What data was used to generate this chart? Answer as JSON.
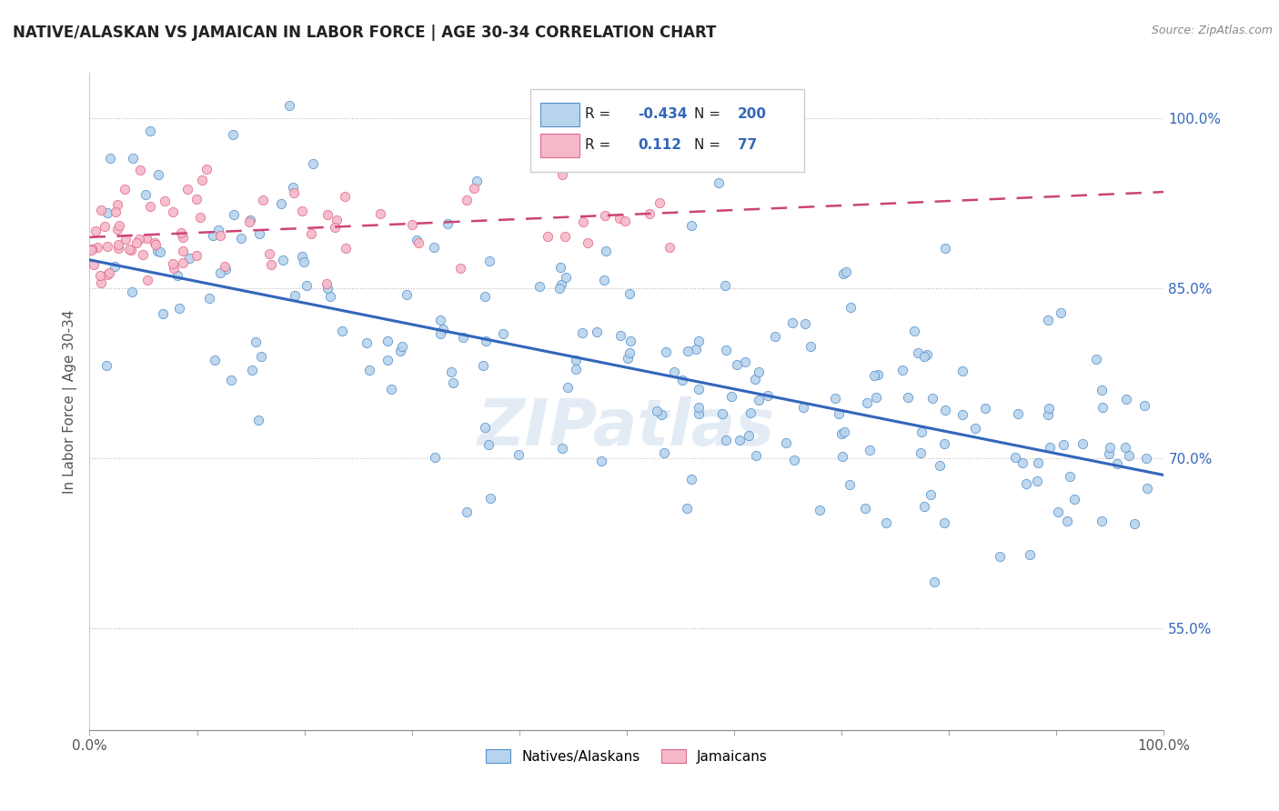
{
  "title": "NATIVE/ALASKAN VS JAMAICAN IN LABOR FORCE | AGE 30-34 CORRELATION CHART",
  "source": "Source: ZipAtlas.com",
  "ylabel": "In Labor Force | Age 30-34",
  "ytick_values": [
    0.55,
    0.7,
    0.85,
    1.0
  ],
  "ytick_labels": [
    "55.0%",
    "70.0%",
    "85.0%",
    "100.0%"
  ],
  "xlim": [
    0.0,
    1.0
  ],
  "ylim": [
    0.46,
    1.04
  ],
  "blue_fill": "#b8d4ed",
  "blue_edge": "#5590cc",
  "pink_fill": "#f5b8c8",
  "pink_edge": "#e06888",
  "blue_line_color": "#3366bb",
  "pink_line_color": "#cc4477",
  "legend_blue_R": "-0.434",
  "legend_blue_N": "200",
  "legend_pink_R": "0.112",
  "legend_pink_N": "77",
  "watermark": "ZIPatlas",
  "blue_trend_x0": 0.0,
  "blue_trend_y0": 0.875,
  "blue_trend_x1": 1.0,
  "blue_trend_y1": 0.685,
  "pink_trend_x0": 0.0,
  "pink_trend_y0": 0.895,
  "pink_trend_x1": 1.0,
  "pink_trend_y1": 0.935
}
